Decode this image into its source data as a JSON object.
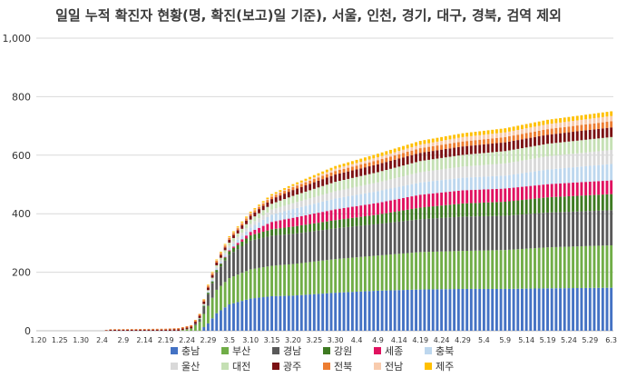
{
  "chart_data": {
    "type": "bar",
    "stacked": true,
    "title": "일일 누적 확진자 현황(명, 확진(보고)일 기준), 서울, 인천, 경기, 대구, 경북, 검역 제외",
    "xlabel": "",
    "ylabel": "",
    "ylim": [
      0,
      1000
    ],
    "y_ticks": [
      "0",
      "200",
      "400",
      "600",
      "800",
      "1,000"
    ],
    "x_tick_labels": [
      "1.20",
      "1.25",
      "1.30",
      "2.4",
      "2.9",
      "2.14",
      "2.19",
      "2.24",
      "2.29",
      "3.5",
      "3.10",
      "3.15",
      "3.20",
      "3.25",
      "3.30",
      "4.4",
      "4.9",
      "4.14",
      "4.19",
      "4.24",
      "4.29",
      "5.4",
      "5.9",
      "5.14",
      "5.19",
      "5.24",
      "5.29",
      "6.3"
    ],
    "x_tick_days": [
      0,
      5,
      10,
      15,
      20,
      25,
      30,
      35,
      40,
      45,
      50,
      55,
      60,
      65,
      70,
      75,
      80,
      85,
      90,
      95,
      100,
      105,
      110,
      115,
      120,
      125,
      130,
      135
    ],
    "num_days": 136,
    "grid": true,
    "legend_position": "bottom",
    "series": [
      {
        "name": "충남",
        "color": "#4472C4",
        "keypoints": [
          [
            0,
            0
          ],
          [
            36,
            0
          ],
          [
            38,
            0
          ],
          [
            40,
            25
          ],
          [
            42,
            60
          ],
          [
            45,
            90
          ],
          [
            50,
            110
          ],
          [
            55,
            118
          ],
          [
            60,
            120
          ],
          [
            70,
            130
          ],
          [
            80,
            137
          ],
          [
            90,
            141
          ],
          [
            100,
            143
          ],
          [
            110,
            143
          ],
          [
            120,
            145
          ],
          [
            135,
            147
          ]
        ]
      },
      {
        "name": "부산",
        "color": "#70AD47",
        "keypoints": [
          [
            0,
            0
          ],
          [
            33,
            0
          ],
          [
            36,
            8
          ],
          [
            38,
            30
          ],
          [
            40,
            60
          ],
          [
            42,
            80
          ],
          [
            45,
            90
          ],
          [
            50,
            100
          ],
          [
            60,
            108
          ],
          [
            70,
            115
          ],
          [
            80,
            120
          ],
          [
            90,
            128
          ],
          [
            100,
            130
          ],
          [
            110,
            133
          ],
          [
            120,
            140
          ],
          [
            135,
            145
          ]
        ]
      },
      {
        "name": "경남",
        "color": "#595959",
        "keypoints": [
          [
            0,
            0
          ],
          [
            36,
            0
          ],
          [
            38,
            10
          ],
          [
            40,
            40
          ],
          [
            42,
            60
          ],
          [
            45,
            80
          ],
          [
            50,
            98
          ],
          [
            55,
            103
          ],
          [
            60,
            103
          ],
          [
            70,
            105
          ],
          [
            80,
            108
          ],
          [
            90,
            112
          ],
          [
            100,
            117
          ],
          [
            110,
            117
          ],
          [
            120,
            119
          ],
          [
            135,
            120
          ]
        ]
      },
      {
        "name": "강원",
        "color": "#3E7A22",
        "keypoints": [
          [
            0,
            0
          ],
          [
            37,
            0
          ],
          [
            40,
            5
          ],
          [
            45,
            12
          ],
          [
            50,
            18
          ],
          [
            55,
            22
          ],
          [
            60,
            25
          ],
          [
            70,
            28
          ],
          [
            80,
            32
          ],
          [
            90,
            40
          ],
          [
            100,
            45
          ],
          [
            110,
            48
          ],
          [
            120,
            52
          ],
          [
            135,
            55
          ]
        ]
      },
      {
        "name": "세종",
        "color": "#E0115F",
        "keypoints": [
          [
            0,
            0
          ],
          [
            42,
            0
          ],
          [
            45,
            3
          ],
          [
            50,
            12
          ],
          [
            55,
            25
          ],
          [
            60,
            30
          ],
          [
            70,
            37
          ],
          [
            80,
            40
          ],
          [
            90,
            44
          ],
          [
            100,
            45
          ],
          [
            110,
            45
          ],
          [
            120,
            45
          ],
          [
            135,
            47
          ]
        ]
      },
      {
        "name": "충북",
        "color": "#BDD7EE",
        "keypoints": [
          [
            0,
            0
          ],
          [
            37,
            0
          ],
          [
            40,
            3
          ],
          [
            45,
            8
          ],
          [
            50,
            15
          ],
          [
            55,
            25
          ],
          [
            60,
            30
          ],
          [
            70,
            37
          ],
          [
            80,
            40
          ],
          [
            90,
            42
          ],
          [
            100,
            43
          ],
          [
            110,
            44
          ],
          [
            120,
            50
          ],
          [
            135,
            56
          ]
        ]
      },
      {
        "name": "울산",
        "color": "#D9D9D9",
        "keypoints": [
          [
            0,
            0
          ],
          [
            38,
            0
          ],
          [
            40,
            3
          ],
          [
            45,
            8
          ],
          [
            50,
            12
          ],
          [
            55,
            17
          ],
          [
            60,
            20
          ],
          [
            70,
            25
          ],
          [
            80,
            30
          ],
          [
            90,
            35
          ],
          [
            100,
            38
          ],
          [
            110,
            42
          ],
          [
            120,
            45
          ],
          [
            135,
            48
          ]
        ]
      },
      {
        "name": "대전",
        "color": "#C5E0B4",
        "keypoints": [
          [
            0,
            0
          ],
          [
            37,
            0
          ],
          [
            40,
            3
          ],
          [
            45,
            10
          ],
          [
            50,
            15
          ],
          [
            55,
            20
          ],
          [
            60,
            25
          ],
          [
            70,
            32
          ],
          [
            80,
            35
          ],
          [
            90,
            38
          ],
          [
            100,
            40
          ],
          [
            110,
            42
          ],
          [
            120,
            43
          ],
          [
            135,
            44
          ]
        ]
      },
      {
        "name": "광주",
        "color": "#7B1113",
        "keypoints": [
          [
            0,
            0
          ],
          [
            15,
            0
          ],
          [
            17,
            3
          ],
          [
            30,
            4
          ],
          [
            36,
            6
          ],
          [
            40,
            9
          ],
          [
            45,
            10
          ],
          [
            55,
            16
          ],
          [
            60,
            20
          ],
          [
            70,
            25
          ],
          [
            80,
            27
          ],
          [
            90,
            28
          ],
          [
            100,
            29
          ],
          [
            110,
            30
          ],
          [
            120,
            31
          ],
          [
            135,
            33
          ]
        ]
      },
      {
        "name": "전북",
        "color": "#ED7D31",
        "keypoints": [
          [
            0,
            0
          ],
          [
            15,
            0
          ],
          [
            17,
            2
          ],
          [
            30,
            3
          ],
          [
            36,
            5
          ],
          [
            40,
            6
          ],
          [
            50,
            7
          ],
          [
            60,
            10
          ],
          [
            70,
            12
          ],
          [
            80,
            14
          ],
          [
            90,
            16
          ],
          [
            100,
            17
          ],
          [
            110,
            18
          ],
          [
            120,
            19
          ],
          [
            135,
            21
          ]
        ]
      },
      {
        "name": "전남",
        "color": "#F8CBAD",
        "keypoints": [
          [
            0,
            0
          ],
          [
            36,
            0
          ],
          [
            40,
            2
          ],
          [
            50,
            3
          ],
          [
            60,
            4
          ],
          [
            70,
            8
          ],
          [
            80,
            10
          ],
          [
            90,
            12
          ],
          [
            100,
            15
          ],
          [
            110,
            16
          ],
          [
            120,
            17
          ],
          [
            135,
            18
          ]
        ]
      },
      {
        "name": "제주",
        "color": "#FFC000",
        "keypoints": [
          [
            0,
            0
          ],
          [
            36,
            0
          ],
          [
            40,
            2
          ],
          [
            45,
            3
          ],
          [
            50,
            4
          ],
          [
            60,
            6
          ],
          [
            70,
            9
          ],
          [
            80,
            12
          ],
          [
            90,
            13
          ],
          [
            100,
            13
          ],
          [
            110,
            14
          ],
          [
            120,
            15
          ],
          [
            135,
            16
          ]
        ]
      }
    ]
  }
}
